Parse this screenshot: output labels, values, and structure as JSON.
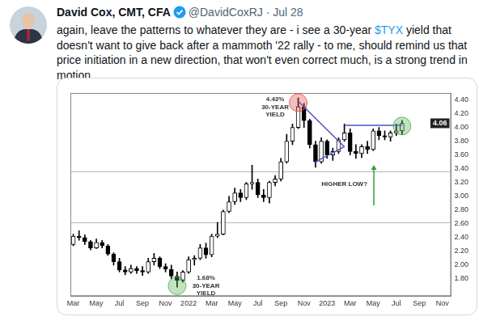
{
  "tweet": {
    "author": "David Cox, CMT, CFA",
    "handle": "@DavidCoxRJ",
    "separator": "·",
    "date": "Jul 28",
    "text_before": "again, leave the patterns to whatever they are - i see a 30-year ",
    "cashtag": "$TYX",
    "text_after": " yield that doesn't want to give back after a mammoth '22 rally - to me, should remind us that price initiation in a new direction, that won't even correct much, is a strong trend in motion..."
  },
  "chart_data": {
    "type": "candlestick",
    "categories": [
      "Mar",
      null,
      null,
      null,
      "May",
      null,
      null,
      null,
      "Jul",
      null,
      null,
      null,
      "Sep",
      null,
      null,
      null,
      "Nov",
      null,
      null,
      null,
      "2022",
      null,
      null,
      null,
      "Mar",
      null,
      null,
      null,
      "May",
      null,
      null,
      null,
      "Jul",
      null,
      null,
      null,
      "Sep",
      null,
      null,
      null,
      "Nov",
      null,
      null,
      null,
      "2023",
      null,
      null,
      null,
      "Mar",
      null,
      null,
      null,
      "May",
      null,
      null,
      null,
      "Jul",
      null,
      null,
      null,
      "Sep",
      null,
      null,
      null,
      "Nov",
      null
    ],
    "candles": {
      "color": "#000000",
      "open": [
        2.3,
        2.42,
        2.4,
        2.34,
        2.25,
        2.33,
        2.28,
        2.16,
        2.05,
        1.93,
        1.9,
        1.95,
        1.92,
        1.9,
        2.05,
        2.1,
        1.98,
        1.94,
        1.84,
        1.78,
        1.9,
        2.08,
        2.1,
        2.25,
        2.15,
        2.42,
        2.45,
        2.78,
        2.92,
        3.05,
        2.98,
        3.18,
        3.2,
        3.02,
        2.98,
        3.2,
        3.25,
        3.5,
        3.8,
        4.0,
        4.3,
        4.1,
        3.75,
        3.5,
        3.8,
        3.6,
        3.65,
        3.82,
        3.92,
        3.65,
        3.62,
        3.72,
        3.68,
        3.95,
        3.88,
        3.86,
        3.92,
        3.95,
        null,
        null,
        null,
        null,
        null,
        null,
        null,
        null
      ],
      "high": [
        2.45,
        2.5,
        2.44,
        2.36,
        2.38,
        2.36,
        2.3,
        2.18,
        2.1,
        1.98,
        2.0,
        1.98,
        1.98,
        2.1,
        2.17,
        2.12,
        2.02,
        2.0,
        1.9,
        1.92,
        2.12,
        2.14,
        2.3,
        2.32,
        2.45,
        2.62,
        2.8,
        3.0,
        3.12,
        3.1,
        3.2,
        3.45,
        3.25,
        3.1,
        3.22,
        3.3,
        3.55,
        3.9,
        4.05,
        4.43,
        4.35,
        4.12,
        3.8,
        3.85,
        3.82,
        3.7,
        3.85,
        4.05,
        3.98,
        3.75,
        3.75,
        3.8,
        3.98,
        4.0,
        3.95,
        3.95,
        4.05,
        4.1,
        null,
        null,
        null,
        null,
        null,
        null,
        null,
        null
      ],
      "low": [
        2.28,
        2.36,
        2.3,
        2.22,
        2.24,
        2.25,
        2.14,
        2.0,
        1.9,
        1.86,
        1.88,
        1.88,
        1.85,
        1.88,
        2.0,
        1.95,
        1.9,
        1.8,
        1.68,
        1.75,
        1.88,
        2.0,
        2.08,
        2.1,
        2.12,
        2.4,
        2.44,
        2.76,
        2.88,
        2.92,
        2.95,
        3.1,
        2.98,
        2.92,
        2.9,
        3.15,
        3.22,
        3.48,
        3.75,
        3.98,
        4.0,
        3.7,
        3.42,
        3.48,
        3.55,
        3.52,
        3.62,
        3.8,
        3.6,
        3.55,
        3.56,
        3.62,
        3.66,
        3.82,
        3.82,
        3.8,
        3.88,
        3.9,
        null,
        null,
        null,
        null,
        null,
        null,
        null,
        null
      ],
      "close": [
        2.42,
        2.4,
        2.34,
        2.25,
        2.33,
        2.28,
        2.16,
        2.05,
        1.93,
        1.9,
        1.95,
        1.92,
        1.9,
        2.05,
        2.1,
        1.98,
        1.94,
        1.84,
        1.78,
        1.9,
        2.08,
        2.1,
        2.25,
        2.15,
        2.42,
        2.45,
        2.78,
        2.92,
        3.05,
        2.98,
        3.18,
        3.2,
        3.02,
        2.98,
        3.2,
        3.25,
        3.5,
        3.8,
        4.0,
        4.3,
        4.1,
        3.75,
        3.5,
        3.8,
        3.6,
        3.65,
        3.82,
        3.92,
        3.65,
        3.62,
        3.72,
        3.68,
        3.95,
        3.88,
        3.86,
        3.92,
        3.95,
        4.06,
        null,
        null,
        null,
        null,
        null,
        null,
        null,
        null
      ]
    },
    "series": [
      {
        "type": "line",
        "color": "#4b4fd1",
        "values": [
          null,
          null,
          null,
          null,
          null,
          null,
          null,
          null,
          null,
          null,
          null,
          null,
          null,
          null,
          null,
          null,
          null,
          null,
          null,
          null,
          null,
          null,
          null,
          null,
          null,
          null,
          null,
          null,
          null,
          null,
          null,
          null,
          null,
          null,
          null,
          null,
          null,
          null,
          null,
          4.38,
          null,
          null,
          null,
          null,
          null,
          null,
          null,
          3.72,
          null,
          null,
          null,
          null,
          null,
          null,
          null,
          null,
          null,
          null,
          null,
          null,
          null,
          null,
          null,
          null,
          null,
          null
        ]
      },
      {
        "type": "line",
        "color": "#4b4fd1",
        "values": [
          null,
          null,
          null,
          null,
          null,
          null,
          null,
          null,
          null,
          null,
          null,
          null,
          null,
          null,
          null,
          null,
          null,
          null,
          null,
          null,
          null,
          null,
          null,
          null,
          null,
          null,
          null,
          null,
          null,
          null,
          null,
          null,
          null,
          null,
          null,
          null,
          null,
          null,
          null,
          null,
          null,
          null,
          3.5,
          null,
          null,
          null,
          null,
          3.72,
          null,
          null,
          null,
          null,
          null,
          null,
          null,
          null,
          null,
          null,
          null,
          null,
          null,
          null,
          null,
          null,
          null,
          null
        ]
      },
      {
        "type": "line",
        "color": "#4b4fd1",
        "values": [
          null,
          null,
          null,
          null,
          null,
          null,
          null,
          null,
          null,
          null,
          null,
          null,
          null,
          null,
          null,
          null,
          null,
          null,
          null,
          null,
          null,
          null,
          null,
          null,
          null,
          null,
          null,
          null,
          null,
          null,
          null,
          null,
          null,
          null,
          null,
          null,
          null,
          null,
          null,
          null,
          null,
          null,
          null,
          null,
          null,
          null,
          null,
          4.03,
          null,
          null,
          null,
          null,
          null,
          null,
          null,
          null,
          null,
          4.03,
          null,
          null,
          null,
          null,
          null,
          null,
          null,
          null
        ]
      },
      {
        "type": "scatter",
        "marker": "circle",
        "colors": [
          "#4caf50",
          "#e04848",
          "#4caf50"
        ],
        "values": [
          null,
          null,
          null,
          null,
          null,
          null,
          null,
          null,
          null,
          null,
          null,
          null,
          null,
          null,
          null,
          null,
          null,
          null,
          1.7,
          null,
          null,
          null,
          null,
          null,
          null,
          null,
          null,
          null,
          null,
          null,
          null,
          null,
          null,
          null,
          null,
          null,
          null,
          null,
          null,
          4.36,
          null,
          null,
          null,
          null,
          null,
          null,
          null,
          null,
          null,
          null,
          null,
          null,
          null,
          null,
          null,
          null,
          null,
          4.02,
          null,
          null,
          null,
          null,
          null,
          null,
          null,
          null
        ]
      }
    ],
    "reference_lines": [
      2.62,
      3.36
    ],
    "annotations": [
      {
        "text": [
          "4.43%",
          "30-YEAR",
          "YIELD"
        ],
        "x": 35,
        "y": 4.45
      },
      {
        "text": [
          "1.68%",
          "30-YEAR",
          "YIELD"
        ],
        "x": 23,
        "y": 1.86
      },
      {
        "text": [
          "HIGHER LOW?"
        ],
        "x": 47,
        "y": 3.22
      }
    ],
    "ylim": [
      1.55,
      4.5
    ],
    "yticks": [
      {
        "value": 1.8,
        "label": "1.80"
      },
      {
        "value": 2.0,
        "label": "2.00"
      },
      {
        "value": 2.2,
        "label": "2.20"
      },
      {
        "value": 2.4,
        "label": "2.40"
      },
      {
        "value": 2.6,
        "label": "2.60"
      },
      {
        "value": 2.8,
        "label": "2.80"
      },
      {
        "value": 3.0,
        "label": "3.00"
      },
      {
        "value": 3.2,
        "label": "3.20"
      },
      {
        "value": 3.4,
        "label": "3.40"
      },
      {
        "value": 3.6,
        "label": "3.60"
      },
      {
        "value": 3.8,
        "label": "3.80"
      },
      {
        "value": 4.0,
        "label": "4.00"
      },
      {
        "value": 4.2,
        "label": "4.20"
      },
      {
        "value": 4.4,
        "label": "4.40"
      }
    ],
    "grid": false
  }
}
